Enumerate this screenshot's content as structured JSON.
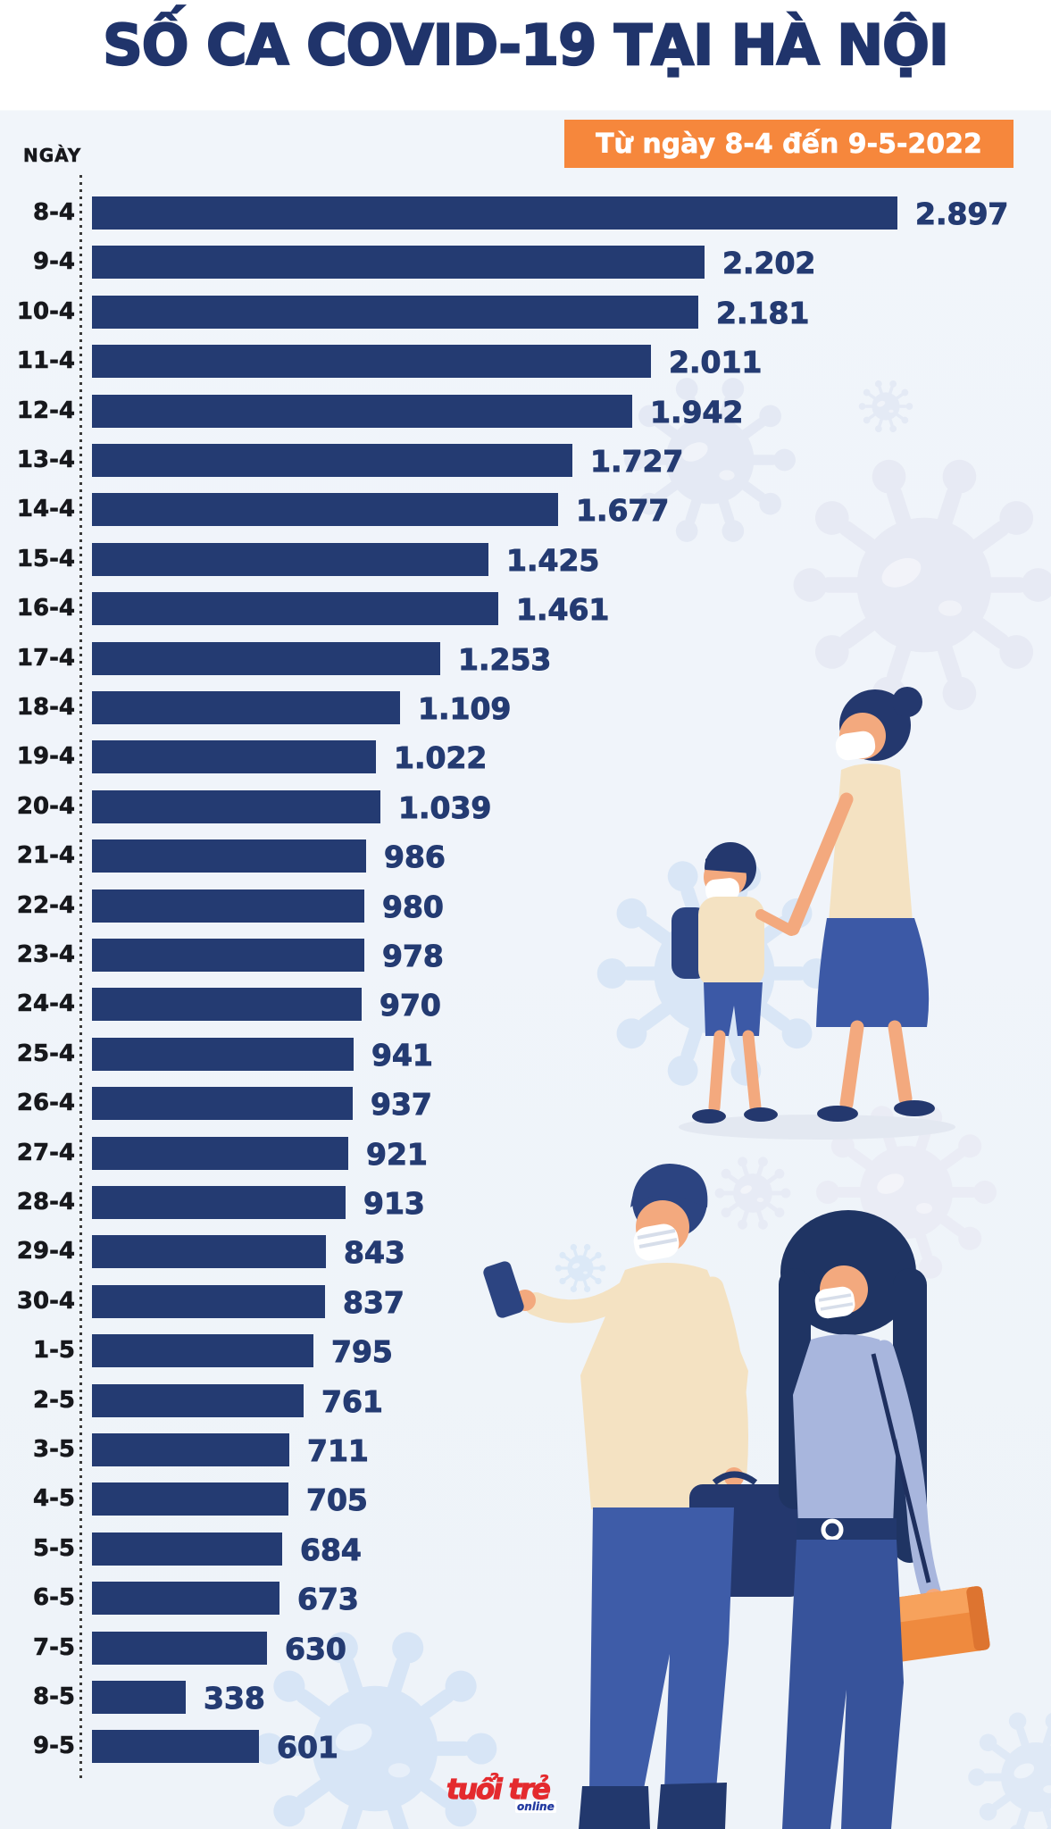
{
  "title": "SỐ CA COVID-19 TẠI HÀ NỘI",
  "banner": "Từ ngày 8-4 đến 9-5-2022",
  "axis_label": "NGÀY",
  "logo": {
    "main": "tuổi trẻ",
    "sub": "online"
  },
  "colors": {
    "bar": "#243b72",
    "title": "#20346b",
    "banner_bg": "#f6873c",
    "date_text": "#17181c",
    "background": "#f1f5fa",
    "logo_red": "#e42a2e",
    "logo_blue": "#2239a0",
    "virus_light": "#e7ebf5",
    "virus_blue": "#d9e6f6"
  },
  "chart_data": {
    "type": "bar",
    "orientation": "horizontal",
    "title": "SỐ CA COVID-19 TẠI HÀ NỘI",
    "subtitle": "Từ ngày 8-4 đến 9-5-2022",
    "xlabel": "",
    "ylabel": "NGÀY",
    "xlim": [
      0,
      2897
    ],
    "grid": false,
    "categories": [
      "8-4",
      "9-4",
      "10-4",
      "11-4",
      "12-4",
      "13-4",
      "14-4",
      "15-4",
      "16-4",
      "17-4",
      "18-4",
      "19-4",
      "20-4",
      "21-4",
      "22-4",
      "23-4",
      "24-4",
      "25-4",
      "26-4",
      "27-4",
      "28-4",
      "29-4",
      "30-4",
      "1-5",
      "2-5",
      "3-5",
      "4-5",
      "5-5",
      "6-5",
      "7-5",
      "8-5",
      "9-5"
    ],
    "values": [
      2897,
      2202,
      2181,
      2011,
      1942,
      1727,
      1677,
      1425,
      1461,
      1253,
      1109,
      1022,
      1039,
      986,
      980,
      978,
      970,
      941,
      937,
      921,
      913,
      843,
      837,
      795,
      761,
      711,
      705,
      684,
      673,
      630,
      338,
      601
    ],
    "value_labels": [
      "2.897",
      "2.202",
      "2.181",
      "2.011",
      "1.942",
      "1.727",
      "1.677",
      "1.425",
      "1.461",
      "1.253",
      "1.109",
      "1.022",
      "1.039",
      "986",
      "980",
      "978",
      "970",
      "941",
      "937",
      "921",
      "913",
      "843",
      "837",
      "795",
      "761",
      "711",
      "705",
      "684",
      "673",
      "630",
      "338",
      "601"
    ]
  }
}
